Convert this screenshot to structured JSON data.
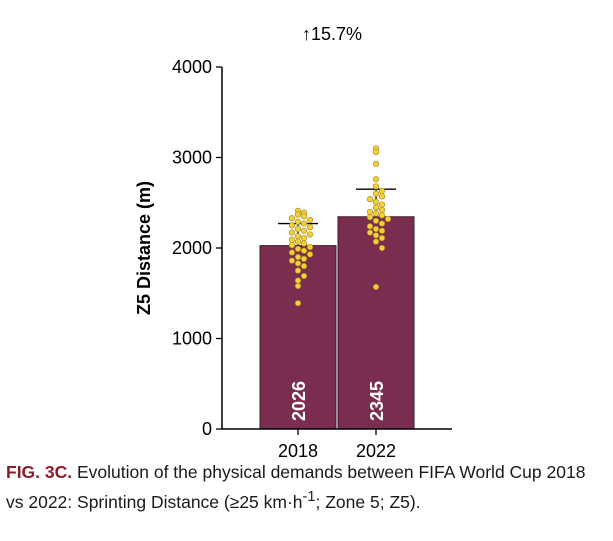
{
  "chart_data": {
    "type": "bar",
    "annotation": "↑15.7%",
    "ylabel": "Z5 Distance (m)",
    "xlabel": "",
    "categories": [
      "2018",
      "2022"
    ],
    "values": [
      2026,
      2345
    ],
    "value_labels": [
      "2026",
      "2345"
    ],
    "error_upper": [
      2270,
      2650
    ],
    "ylim": [
      0,
      4000
    ],
    "yticks": [
      0,
      1000,
      2000,
      3000,
      4000
    ],
    "ytick_labels": [
      "0",
      "1000",
      "2000",
      "3000",
      "4000"
    ],
    "bar_color": "#7b2d4f",
    "point_color": "#f2cf3d",
    "grid": false,
    "points": [
      [
        2410,
        2390,
        2370,
        2350,
        2330,
        2310,
        2290,
        2270,
        2250,
        2230,
        2210,
        2190,
        2170,
        2150,
        2130,
        2110,
        2090,
        2070,
        2050,
        2030,
        2010,
        1990,
        1970,
        1950,
        1930,
        1900,
        1880,
        1860,
        1830,
        1800,
        1750,
        1690,
        1640,
        1580,
        1390
      ],
      [
        3100,
        3060,
        2930,
        2760,
        2680,
        2630,
        2600,
        2570,
        2540,
        2510,
        2480,
        2450,
        2420,
        2400,
        2380,
        2360,
        2340,
        2320,
        2300,
        2270,
        2240,
        2210,
        2190,
        2170,
        2140,
        2110,
        2070,
        2000,
        1570
      ]
    ]
  },
  "caption": {
    "label": "FIG. 3C.",
    "text": " Evolution of the physical demands between FIFA World Cup 2018 vs 2022: Sprinting Distance (≥25 km·h",
    "sup": "-1",
    "text_end": "; Zone 5; Z5)."
  }
}
